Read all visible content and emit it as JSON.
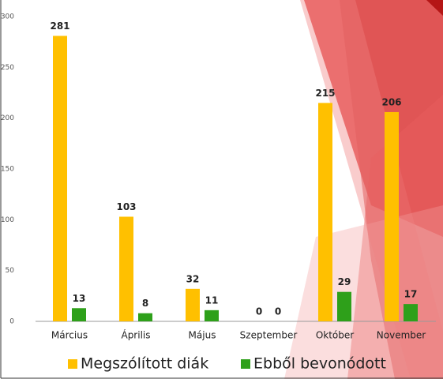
{
  "chart_data": {
    "type": "bar",
    "categories": [
      "Március",
      "Április",
      "Május",
      "Szeptember",
      "Október",
      "November"
    ],
    "series": [
      {
        "name": "Megszólított diák",
        "color": "#ffc000",
        "values": [
          281,
          103,
          32,
          0,
          215,
          206
        ]
      },
      {
        "name": "Ebből bevonódott",
        "color": "#2ea01a",
        "values": [
          13,
          8,
          11,
          0,
          29,
          17
        ]
      }
    ],
    "ylim": [
      0,
      300
    ],
    "yticks": [
      0,
      50,
      100,
      150,
      200,
      250,
      300
    ],
    "grid": false,
    "legend": "bottom"
  }
}
